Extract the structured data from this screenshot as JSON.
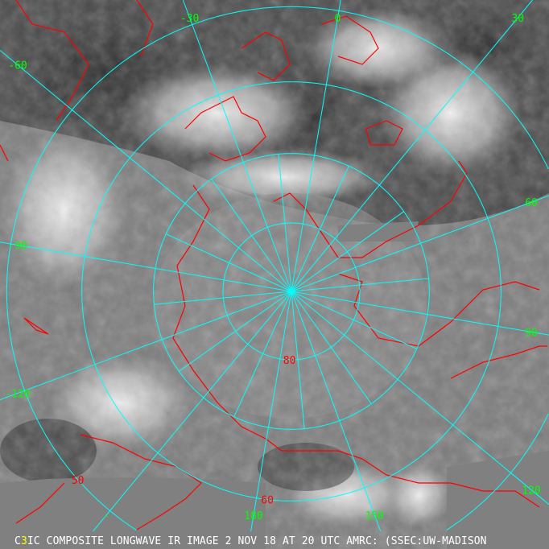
{
  "caption": {
    "prefix": "C",
    "marker": "3",
    "text": "IC COMPOSITE LONGWAVE IR IMAGE 2 NOV 18 AT 20 UTC AMRC: (SSEC:UW-MADISON"
  },
  "map": {
    "projection": "polar stereographic, north pole",
    "colors": {
      "grid": "#00ffff",
      "coast": "#ff0000",
      "lon_label": "#00ff00",
      "lat_label": "#ff0000",
      "no_data": "#808080",
      "caption": "#ffffff",
      "marker": "#ffff00"
    },
    "latitude_circles": [
      80,
      70,
      60,
      50
    ],
    "latitude_labels": [
      {
        "text": "80",
        "lat": 80
      },
      {
        "text": "60",
        "lat": 60
      },
      {
        "text": "50",
        "lat": 50
      }
    ],
    "longitude_labels": [
      {
        "text": "0",
        "lon": 0
      },
      {
        "text": "30",
        "lon": 30
      },
      {
        "text": "60",
        "lon": 60
      },
      {
        "text": "90",
        "lon": 90
      },
      {
        "text": "120",
        "lon": 120
      },
      {
        "text": "150",
        "lon": 150
      },
      {
        "text": "180",
        "lon": 180
      },
      {
        "text": "-",
        "lon": -150
      },
      {
        "text": "-120",
        "lon": -120
      },
      {
        "text": "-90",
        "lon": -90
      },
      {
        "text": "-60",
        "lon": -60
      },
      {
        "text": "-30",
        "lon": -30
      }
    ]
  }
}
